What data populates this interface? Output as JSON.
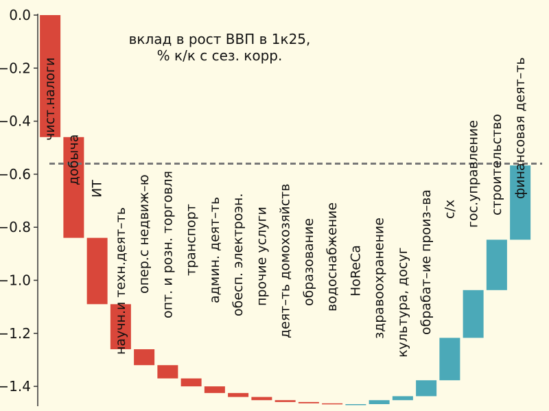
{
  "chart_data": {
    "type": "waterfall",
    "title_line1": "вклад в рост ВВП в 1к25,",
    "title_line2": "% к/к с сез. корр.",
    "xlabel": "",
    "ylabel": "",
    "ylim": [
      -1.45,
      0.0
    ],
    "yticks": [
      "0.0",
      "−0.2",
      "−0.4",
      "−0.6",
      "−0.8",
      "−1.0",
      "−1.2",
      "−1.4"
    ],
    "ytick_values": [
      0.0,
      -0.2,
      -0.4,
      -0.6,
      -0.8,
      -1.0,
      -1.2,
      -1.4
    ],
    "reference_line": -0.56,
    "grid": false,
    "legend": "none",
    "colors": {
      "negative": "#d9473a",
      "positive": "#4ba9b8",
      "reference": "#777777",
      "background": "#fefbe6"
    },
    "categories": [
      "чист.налоги",
      "добыча",
      "ИТ",
      "научн.и техн.деят–ть",
      "опер.с недвиж–ю",
      "опт. и розн. торговля",
      "транспорт",
      "админ. деят–ть",
      "обесп. электроэн.",
      "прочие услуги",
      "деят–ть домохозяйств",
      "образование",
      "водоснабжение",
      "HoReCa",
      "здравоохранение",
      "культура, досуг",
      "обрабат–ие произ–ва",
      "с/х",
      "гос.управление",
      "строительство",
      "финансовая деят–ть"
    ],
    "values": [
      -0.46,
      -0.38,
      -0.25,
      -0.17,
      -0.06,
      -0.05,
      -0.03,
      -0.025,
      -0.015,
      -0.012,
      -0.007,
      -0.005,
      -0.003,
      0.0,
      0.015,
      0.015,
      0.06,
      0.16,
      0.18,
      0.19,
      0.28
    ]
  }
}
